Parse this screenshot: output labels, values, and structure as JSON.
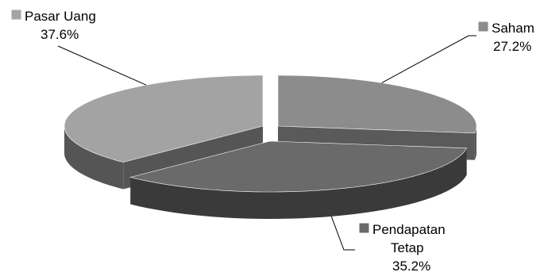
{
  "chart_data": {
    "type": "pie",
    "style": "3d-exploded",
    "legend": "none",
    "slices": [
      {
        "name": "Saham",
        "value": 27.2,
        "label": "27.2%",
        "top_color": "#8c8c8c",
        "side_color": "#5a5a5a"
      },
      {
        "name": "Pendapatan Tetap",
        "value": 35.2,
        "label": "35.2%",
        "top_color": "#6a6a6a",
        "side_color": "#3a3a3a"
      },
      {
        "name": "Pasar Uang",
        "value": 37.6,
        "label": "37.6%",
        "top_color": "#a3a3a3",
        "side_color": "#555555"
      }
    ]
  }
}
